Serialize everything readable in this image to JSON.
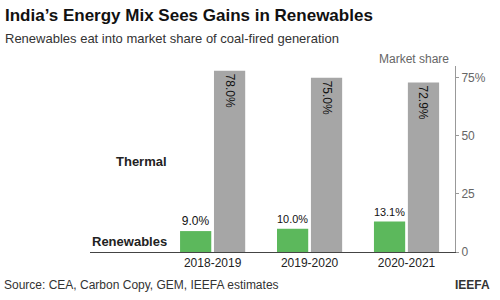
{
  "chart_data": {
    "type": "bar",
    "title": "India’s Energy Mix Sees Gains in Renewables",
    "subtitle": "Renewables eat into market share of coal-fired generation",
    "y_label": "Market share",
    "categories": [
      "2018-2019",
      "2019-2020",
      "2020-2021"
    ],
    "series": [
      {
        "name": "Renewables",
        "color": "#5cb85c",
        "values": [
          9.0,
          10.0,
          13.1
        ],
        "value_labels": [
          "9.0%",
          "10.0%",
          "13.1%"
        ]
      },
      {
        "name": "Thermal",
        "color": "#a6a6a6",
        "values": [
          78.0,
          75.0,
          72.9
        ],
        "value_labels": [
          "78.0%",
          "75.0%",
          "72.9%"
        ]
      }
    ],
    "ylim": [
      0,
      80
    ],
    "yticks": [
      0,
      25,
      50,
      {
        "value": 75,
        "label": "75%"
      }
    ],
    "grid": false,
    "data_labels": true,
    "source": "Source: CEA, Carbon Copy, GEM, IEEFA estimates",
    "credit": "IEEFA"
  }
}
